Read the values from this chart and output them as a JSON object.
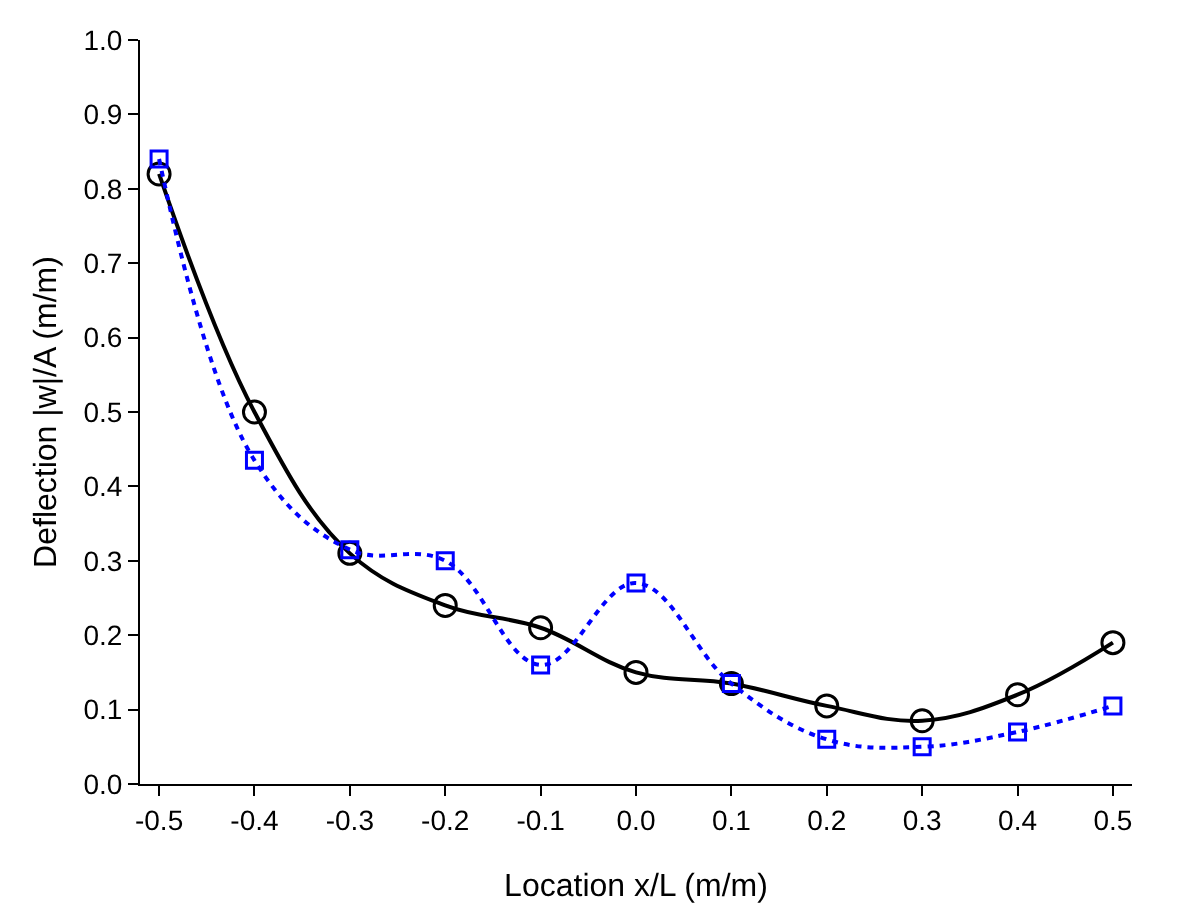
{
  "chart_data": {
    "type": "line",
    "xlabel": "Location x/L (m/m)",
    "ylabel": "Deflection |w|/A (m/m)",
    "x": [
      -0.5,
      -0.4,
      -0.3,
      -0.2,
      -0.1,
      0,
      0.1,
      0.2,
      0.3,
      0.4,
      0.5
    ],
    "series": [
      {
        "color": "#000000",
        "marker": "circle",
        "line_style": "solid",
        "values": [
          0.82,
          0.5,
          0.31,
          0.24,
          0.21,
          0.15,
          0.135,
          0.105,
          0.085,
          0.12,
          0.19
        ]
      },
      {
        "color": "#0000ff",
        "marker": "square",
        "line_style": "dotted",
        "values": [
          0.84,
          0.435,
          0.315,
          0.3,
          0.16,
          0.27,
          0.135,
          0.06,
          0.05,
          0.07,
          0.105
        ]
      }
    ],
    "xlim": [
      -0.52,
      0.52
    ],
    "ylim": [
      0,
      1
    ],
    "xticks": [
      -0.5,
      -0.4,
      -0.3,
      -0.2,
      -0.1,
      {
        "value": 0,
        "label": "0.0"
      },
      0.1,
      0.2,
      0.3,
      0.4,
      0.5
    ],
    "yticks": [
      {
        "value": 0,
        "label": "0.0"
      },
      0.1,
      0.2,
      0.3,
      0.4,
      0.5,
      0.6,
      0.7,
      0.8,
      0.9,
      {
        "value": 1,
        "label": "1.0"
      }
    ],
    "grid": false,
    "legend": false
  }
}
